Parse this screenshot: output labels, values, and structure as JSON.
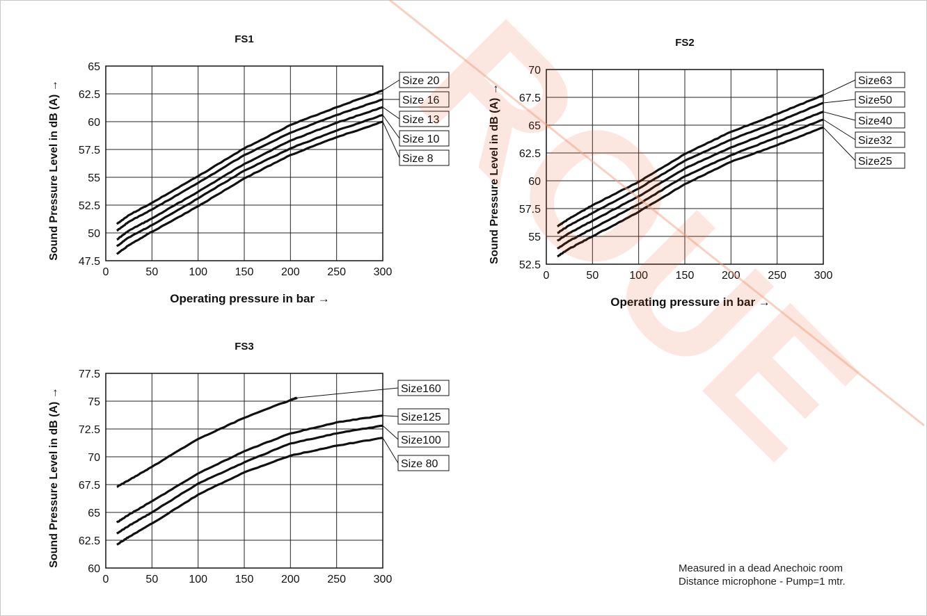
{
  "watermark_text": "ROUE",
  "note": {
    "line1": "Measured in a dead Anechoic room",
    "line2": "Distance microphone - Pump=1 mtr."
  },
  "chart_data": [
    {
      "type": "line",
      "title": "FS1",
      "xlabel": "Operating pressure in bar →",
      "ylabel": "Sound Pressure Level in dB (A) →",
      "xlim": [
        0,
        300
      ],
      "ylim": [
        47.5,
        65
      ],
      "xticks": [
        0,
        50,
        100,
        150,
        200,
        250,
        300
      ],
      "yticks": [
        47.5,
        50,
        52.5,
        55,
        57.5,
        60,
        62.5,
        65
      ],
      "grid": true,
      "x": [
        12,
        25,
        50,
        100,
        150,
        200,
        250,
        300
      ],
      "series": [
        {
          "name": "Size 20",
          "values": [
            50.8,
            51.6,
            52.7,
            55.1,
            57.6,
            59.7,
            61.3,
            62.8
          ]
        },
        {
          "name": "Size 16",
          "values": [
            50.2,
            51.0,
            52.1,
            54.5,
            57.0,
            59.0,
            60.6,
            62.0
          ]
        },
        {
          "name": "Size 13",
          "values": [
            49.4,
            50.2,
            51.3,
            53.7,
            56.2,
            58.3,
            59.9,
            61.3
          ]
        },
        {
          "name": "Size 10",
          "values": [
            48.8,
            49.6,
            50.7,
            53.1,
            55.6,
            57.6,
            59.2,
            60.6
          ]
        },
        {
          "name": "Size 8",
          "values": [
            48.1,
            48.9,
            50.1,
            52.4,
            54.9,
            57.0,
            58.6,
            60.0
          ]
        }
      ]
    },
    {
      "type": "line",
      "title": "FS2",
      "xlabel": "Operating pressure in bar →",
      "ylabel": "Sound Pressure Level in dB (A) →",
      "xlim": [
        0,
        300
      ],
      "ylim": [
        52.5,
        70
      ],
      "xticks": [
        0,
        50,
        100,
        150,
        200,
        250,
        300
      ],
      "yticks": [
        52.5,
        55,
        57.5,
        60,
        62.5,
        65,
        67.5,
        70
      ],
      "grid": true,
      "x": [
        12,
        25,
        50,
        100,
        150,
        200,
        250,
        300
      ],
      "series": [
        {
          "name": "Size63",
          "values": [
            55.9,
            56.6,
            57.8,
            59.9,
            62.4,
            64.4,
            66.0,
            67.7
          ]
        },
        {
          "name": "Size50",
          "values": [
            55.3,
            56.0,
            57.1,
            59.3,
            61.8,
            63.7,
            65.3,
            67.0
          ]
        },
        {
          "name": "Size40",
          "values": [
            54.6,
            55.3,
            56.4,
            58.6,
            61.1,
            63.0,
            64.6,
            66.2
          ]
        },
        {
          "name": "Size32",
          "values": [
            53.9,
            54.6,
            55.7,
            57.9,
            60.4,
            62.3,
            63.9,
            65.5
          ]
        },
        {
          "name": "Size25",
          "values": [
            53.2,
            53.9,
            55.0,
            57.2,
            59.7,
            61.7,
            63.2,
            64.8
          ]
        }
      ]
    },
    {
      "type": "line",
      "title": "FS3",
      "xlabel": "",
      "ylabel": "Sound Pressure Level in dB (A) →",
      "xlim": [
        0,
        300
      ],
      "ylim": [
        60,
        77.5
      ],
      "xticks": [
        0,
        50,
        100,
        150,
        200,
        250,
        300
      ],
      "yticks": [
        60,
        62.5,
        65,
        67.5,
        70,
        72.5,
        75,
        77.5
      ],
      "grid": true,
      "x": [
        12,
        25,
        50,
        100,
        150,
        200,
        250,
        300
      ],
      "series": [
        {
          "name": "Size160",
          "x": [
            12,
            25,
            50,
            100,
            150,
            200,
            207
          ],
          "values": [
            67.3,
            67.9,
            69.1,
            71.6,
            73.5,
            75.1,
            75.3
          ]
        },
        {
          "name": "Size125",
          "values": [
            64.1,
            64.8,
            66.0,
            68.5,
            70.5,
            72.1,
            73.1,
            73.7
          ]
        },
        {
          "name": "Size100",
          "values": [
            63.1,
            63.8,
            65.0,
            67.6,
            69.5,
            71.2,
            72.1,
            72.8
          ]
        },
        {
          "name": "Size 80",
          "values": [
            62.1,
            62.8,
            64.0,
            66.6,
            68.6,
            70.1,
            71.0,
            71.7
          ]
        }
      ]
    }
  ]
}
